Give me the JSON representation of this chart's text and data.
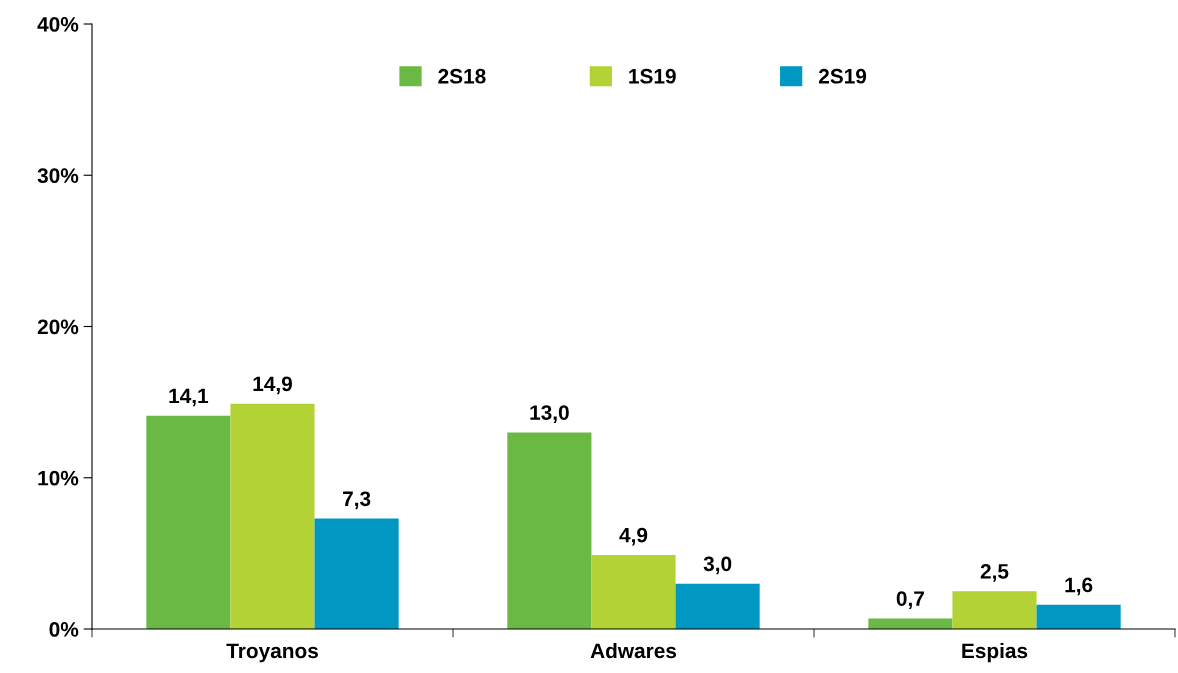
{
  "chart_data": {
    "type": "bar",
    "categories": [
      "Troyanos",
      "Adwares",
      "Espias"
    ],
    "series": [
      {
        "name": "2S18",
        "color": "#6ab945",
        "values": [
          14.1,
          13.0,
          0.7
        ],
        "value_labels": [
          "14,1",
          "13,0",
          "0,7"
        ]
      },
      {
        "name": "1S19",
        "color": "#b2d235",
        "values": [
          14.9,
          4.9,
          2.5
        ],
        "value_labels": [
          "14,9",
          "4,9",
          "2,5"
        ]
      },
      {
        "name": "2S19",
        "color": "#0098c3",
        "values": [
          7.3,
          3.0,
          1.6
        ],
        "value_labels": [
          "7,3",
          "3,0",
          "1,6"
        ]
      }
    ],
    "ylim": [
      0,
      40
    ],
    "yticks": [
      {
        "value": 0,
        "label": "0%"
      },
      {
        "value": 10,
        "label": "10%"
      },
      {
        "value": 20,
        "label": "20%"
      },
      {
        "value": 30,
        "label": "30%"
      },
      {
        "value": 40,
        "label": "40%"
      }
    ],
    "grid": false,
    "legend": "top"
  }
}
